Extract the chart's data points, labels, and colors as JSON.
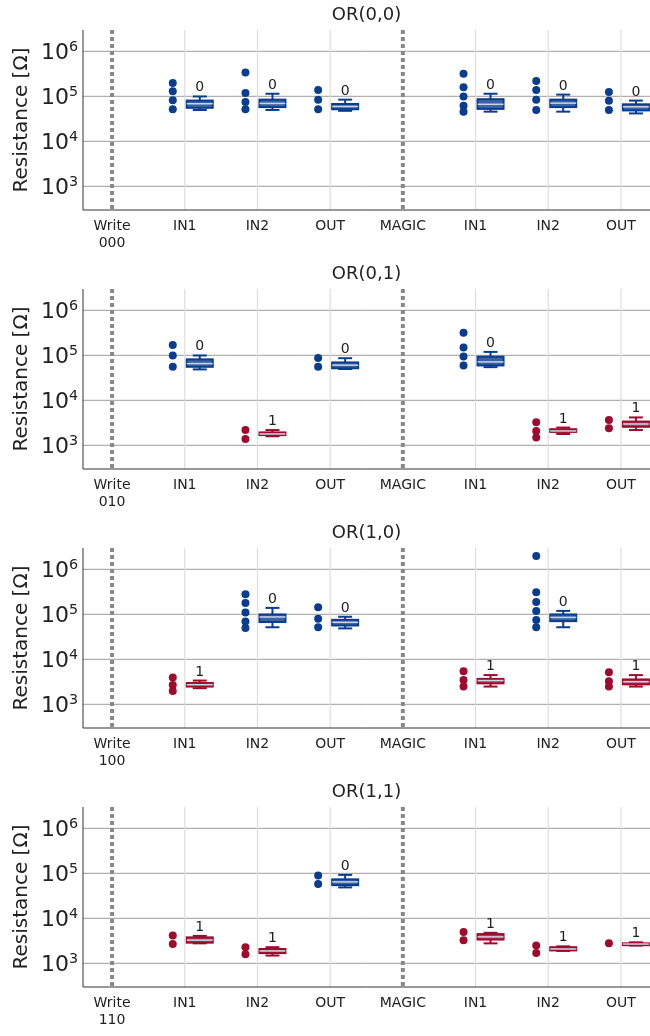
{
  "chart_data": [
    {
      "type": "box",
      "title": "OR(0,0)",
      "ylabel": "Resistance [Ω]",
      "log": "y",
      "grid": true,
      "ylim": [
        300,
        3000000
      ],
      "yticks": [
        {
          "value": 1000,
          "label": "10$^{3}$"
        },
        {
          "value": 10000,
          "label": "10$^{4}$"
        },
        {
          "value": 100000,
          "label": "10$^{5}$"
        },
        {
          "value": 1000000,
          "label": "10$^{6}$"
        }
      ],
      "categories": [
        "Write 000",
        "IN1",
        "IN2",
        "OUT"
      ],
      "ref_lines": [
        {
          "axis": "x",
          "value": "Write 000",
          "color": "#888888",
          "line_style": "dotted"
        }
      ],
      "series": [
        {
          "type": "box",
          "color": "#0b3d8c",
          "boxes": [
            null,
            {
              "low": 50000,
              "q1": 56000,
              "median": 69000,
              "q3": 81000,
              "high": 100000
            },
            {
              "low": 50000,
              "q1": 58000,
              "median": 70000,
              "q3": 85000,
              "high": 115000
            },
            {
              "low": 48000,
              "q1": 52000,
              "median": 60000,
              "q3": 68000,
              "high": 85000
            }
          ],
          "value_labels": [
            null,
            "0",
            "0",
            "0"
          ]
        },
        {
          "type": "scatter",
          "color": "#0b3d8c",
          "x": [
            "IN1",
            "IN1",
            "IN1",
            "IN1",
            "IN2",
            "IN2",
            "IN2",
            "IN2",
            "OUT",
            "OUT",
            "OUT"
          ],
          "values": [
            200000,
            130000,
            82000,
            52000,
            340000,
            120000,
            75000,
            52000,
            140000,
            85000,
            52000
          ]
        }
      ]
    },
    {
      "type": "box",
      "log": "y",
      "grid": true,
      "tick_labels": "x",
      "ylim": [
        300,
        3000000
      ],
      "yticks": [
        1000,
        10000,
        100000,
        1000000
      ],
      "categories": [
        "MAGIC",
        "IN1",
        "IN2",
        "OUT"
      ],
      "ref_lines": [
        {
          "axis": "x",
          "value": "MAGIC",
          "color": "#888888",
          "line_style": "dotted"
        }
      ],
      "series": [
        {
          "type": "box",
          "color": "#0b3d8c",
          "boxes": [
            null,
            {
              "low": 46000,
              "q1": 53000,
              "median": 67000,
              "q3": 87000,
              "high": 115000
            },
            {
              "low": 46000,
              "q1": 58000,
              "median": 71000,
              "q3": 85000,
              "high": 110000
            },
            {
              "low": 42000,
              "q1": 49000,
              "median": 59000,
              "q3": 67000,
              "high": 81000
            }
          ],
          "value_labels": [
            null,
            "0",
            "0",
            "0"
          ]
        },
        {
          "type": "scatter",
          "color": "#0b3d8c",
          "x": [
            "IN1",
            "IN1",
            "IN1",
            "IN1",
            "IN1",
            "IN2",
            "IN2",
            "IN2",
            "IN2",
            "OUT",
            "OUT",
            "OUT"
          ],
          "values": [
            320000,
            160000,
            100000,
            62000,
            46000,
            220000,
            140000,
            85000,
            50000,
            126000,
            80000,
            50000
          ]
        }
      ]
    },
    {
      "type": "box",
      "title": "OR(0,1)",
      "ylabel": "Resistance [Ω]",
      "log": "y",
      "grid": true,
      "ylim": [
        300,
        3000000
      ],
      "yticks": [
        {
          "value": 1000,
          "label": "10$^{3}$"
        },
        {
          "value": 10000,
          "label": "10$^{4}$"
        },
        {
          "value": 100000,
          "label": "10$^{5}$"
        },
        {
          "value": 1000000,
          "label": "10$^{6}$"
        }
      ],
      "categories": [
        "Write 010",
        "IN1",
        "IN2",
        "OUT"
      ],
      "ref_lines": [
        {
          "axis": "x",
          "value": "Write 010",
          "color": "#888888",
          "line_style": "dotted"
        }
      ],
      "series": [
        {
          "type": "box",
          "color": "#0b3d8c",
          "boxes": [
            null,
            {
              "low": 49000,
              "q1": 56000,
              "median": 66000,
              "q3": 82000,
              "high": 100000
            },
            null,
            {
              "low": 50000,
              "q1": 52000,
              "median": 61000,
              "q3": 70000,
              "high": 87000
            }
          ],
          "value_labels": [
            null,
            "0",
            null,
            "0"
          ]
        },
        {
          "type": "box",
          "color": "#9b0d2e",
          "boxes": [
            null,
            null,
            {
              "low": 1600,
              "q1": 1700,
              "median": 1800,
              "q3": 1950,
              "high": 2200
            },
            null
          ],
          "value_labels": [
            null,
            null,
            "1",
            null
          ]
        },
        {
          "type": "scatter",
          "color": "#0b3d8c",
          "x": [
            "IN1",
            "IN1",
            "IN1",
            "OUT",
            "OUT"
          ],
          "values": [
            170000,
            100000,
            56000,
            88000,
            56000
          ]
        },
        {
          "type": "scatter",
          "color": "#9b0d2e",
          "x": [
            "IN2",
            "IN2"
          ],
          "values": [
            2200,
            1400
          ]
        }
      ]
    },
    {
      "type": "box",
      "log": "y",
      "grid": true,
      "tick_labels": "x",
      "ylim": [
        300,
        3000000
      ],
      "yticks": [
        1000,
        10000,
        100000,
        1000000
      ],
      "categories": [
        "MAGIC",
        "IN1",
        "IN2",
        "OUT"
      ],
      "ref_lines": [
        {
          "axis": "x",
          "value": "MAGIC",
          "color": "#888888",
          "line_style": "dotted"
        }
      ],
      "series": [
        {
          "type": "box",
          "color": "#0b3d8c",
          "boxes": [
            null,
            {
              "low": 55000,
              "q1": 60000,
              "median": 72000,
              "q3": 94000,
              "high": 120000
            },
            null,
            null
          ],
          "value_labels": [
            null,
            "0",
            null,
            null
          ]
        },
        {
          "type": "box",
          "color": "#9b0d2e",
          "boxes": [
            null,
            null,
            {
              "low": 1800,
              "q1": 2000,
              "median": 2100,
              "q3": 2300,
              "high": 2500
            },
            {
              "low": 2200,
              "q1": 2600,
              "median": 3000,
              "q3": 3400,
              "high": 4200
            }
          ],
          "value_labels": [
            null,
            null,
            "1",
            "1"
          ]
        },
        {
          "type": "scatter",
          "color": "#0b3d8c",
          "x": [
            "IN1",
            "IN1",
            "IN1",
            "IN1"
          ],
          "values": [
            320000,
            150000,
            95000,
            60000
          ]
        },
        {
          "type": "scatter",
          "color": "#9b0d2e",
          "x": [
            "IN2",
            "IN2",
            "IN2",
            "OUT",
            "OUT"
          ],
          "values": [
            3300,
            2100,
            1500,
            3700,
            2400
          ]
        }
      ]
    },
    {
      "type": "box",
      "title": "OR(1,0)",
      "ylabel": "Resistance [Ω]",
      "log": "y",
      "grid": true,
      "ylim": [
        300,
        3000000
      ],
      "yticks": [
        {
          "value": 1000,
          "label": "10$^{3}$"
        },
        {
          "value": 10000,
          "label": "10$^{4}$"
        },
        {
          "value": 100000,
          "label": "10$^{5}$"
        },
        {
          "value": 1000000,
          "label": "10$^{6}$"
        }
      ],
      "categories": [
        "Write 100",
        "IN1",
        "IN2",
        "OUT"
      ],
      "ref_lines": [
        {
          "axis": "x",
          "value": "Write 100",
          "color": "#888888",
          "line_style": "dotted"
        }
      ],
      "series": [
        {
          "type": "box",
          "color": "#0b3d8c",
          "boxes": [
            null,
            null,
            {
              "low": 52000,
              "q1": 68000,
              "median": 88000,
              "q3": 100000,
              "high": 140000
            },
            {
              "low": 49000,
              "q1": 57000,
              "median": 67000,
              "q3": 76000,
              "high": 89000
            }
          ],
          "value_labels": [
            null,
            null,
            "0",
            "0"
          ]
        },
        {
          "type": "box",
          "color": "#9b0d2e",
          "boxes": [
            null,
            {
              "low": 2300,
              "q1": 2500,
              "median": 2750,
              "q3": 3000,
              "high": 3400
            },
            null,
            null
          ],
          "value_labels": [
            null,
            "1",
            null,
            null
          ]
        },
        {
          "type": "scatter",
          "color": "#0b3d8c",
          "x": [
            "IN2",
            "IN2",
            "IN2",
            "IN2",
            "IN2",
            "OUT",
            "OUT",
            "OUT"
          ],
          "values": [
            280000,
            180000,
            110000,
            70000,
            50000,
            145000,
            80000,
            52000
          ]
        },
        {
          "type": "scatter",
          "color": "#9b0d2e",
          "x": [
            "IN1",
            "IN1",
            "IN1"
          ],
          "values": [
            4000,
            2700,
            2000
          ]
        }
      ]
    },
    {
      "type": "box",
      "log": "y",
      "grid": true,
      "tick_labels": "x",
      "ylim": [
        300,
        3000000
      ],
      "yticks": [
        1000,
        10000,
        100000,
        1000000
      ],
      "categories": [
        "MAGIC",
        "IN1",
        "IN2",
        "OUT"
      ],
      "ref_lines": [
        {
          "axis": "x",
          "value": "MAGIC",
          "color": "#888888",
          "line_style": "dotted"
        }
      ],
      "series": [
        {
          "type": "box",
          "color": "#0b3d8c",
          "boxes": [
            null,
            null,
            {
              "low": 52000,
              "q1": 71000,
              "median": 86000,
              "q3": 100000,
              "high": 120000
            },
            null
          ],
          "value_labels": [
            null,
            null,
            "0",
            null
          ]
        },
        {
          "type": "box",
          "color": "#9b0d2e",
          "boxes": [
            null,
            {
              "low": 2500,
              "q1": 2950,
              "median": 3400,
              "q3": 3700,
              "high": 4500
            },
            null,
            {
              "low": 2500,
              "q1": 2800,
              "median": 3200,
              "q3": 3600,
              "high": 4500
            }
          ],
          "value_labels": [
            null,
            "1",
            null,
            "1"
          ]
        },
        {
          "type": "scatter",
          "color": "#0b3d8c",
          "x": [
            "IN2",
            "IN2",
            "IN2",
            "IN2",
            "IN2",
            "IN2"
          ],
          "values": [
            2000000,
            310000,
            190000,
            120000,
            75000,
            52000
          ]
        },
        {
          "type": "scatter",
          "color": "#9b0d2e",
          "x": [
            "IN1",
            "IN1",
            "IN1",
            "OUT",
            "OUT",
            "OUT"
          ],
          "values": [
            5500,
            3500,
            2500,
            5200,
            3300,
            2500
          ]
        }
      ]
    },
    {
      "type": "box",
      "title": "OR(1,1)",
      "ylabel": "Resistance [Ω]",
      "log": "y",
      "grid": true,
      "ylim": [
        300,
        3000000
      ],
      "yticks": [
        {
          "value": 1000,
          "label": "10$^{3}$"
        },
        {
          "value": 10000,
          "label": "10$^{4}$"
        },
        {
          "value": 100000,
          "label": "10$^{5}$"
        },
        {
          "value": 1000000,
          "label": "10$^{6}$"
        }
      ],
      "categories": [
        "Write 110",
        "IN1",
        "IN2",
        "OUT"
      ],
      "ref_lines": [
        {
          "axis": "x",
          "value": "Write 110",
          "color": "#888888",
          "line_style": "dotted"
        }
      ],
      "series": [
        {
          "type": "box",
          "color": "#0b3d8c",
          "boxes": [
            null,
            null,
            null,
            {
              "low": 49000,
              "q1": 55000,
              "median": 65000,
              "q3": 74000,
              "high": 93000
            }
          ],
          "value_labels": [
            null,
            null,
            null,
            "0"
          ]
        },
        {
          "type": "box",
          "color": "#9b0d2e",
          "boxes": [
            null,
            {
              "low": 2800,
              "q1": 2900,
              "median": 3300,
              "q3": 3800,
              "high": 4100
            },
            {
              "low": 1500,
              "q1": 1700,
              "median": 1900,
              "q3": 2100,
              "high": 2300
            },
            null
          ],
          "value_labels": [
            null,
            "1",
            "1",
            null
          ]
        },
        {
          "type": "scatter",
          "color": "#0b3d8c",
          "x": [
            "OUT",
            "OUT"
          ],
          "values": [
            90000,
            58000
          ]
        },
        {
          "type": "scatter",
          "color": "#9b0d2e",
          "x": [
            "IN1",
            "IN1",
            "IN2",
            "IN2"
          ],
          "values": [
            4200,
            2700,
            2300,
            1600
          ]
        }
      ]
    },
    {
      "type": "box",
      "log": "y",
      "grid": true,
      "tick_labels": "x",
      "ylim": [
        300,
        3000000
      ],
      "yticks": [
        1000,
        10000,
        100000,
        1000000
      ],
      "categories": [
        "MAGIC",
        "IN1",
        "IN2",
        "OUT"
      ],
      "ref_lines": [
        {
          "axis": "x",
          "value": "MAGIC",
          "color": "#888888",
          "line_style": "dotted"
        }
      ],
      "series": [
        {
          "type": "box",
          "color": "#9b0d2e",
          "boxes": [
            null,
            {
              "low": 2800,
              "q1": 3400,
              "median": 3900,
              "q3": 4500,
              "high": 4800
            },
            {
              "low": 1900,
              "q1": 1950,
              "median": 2100,
              "q3": 2300,
              "high": 2400
            },
            {
              "low": 2500,
              "q1": 2550,
              "median": 2700,
              "q3": 2800,
              "high": 2950
            }
          ],
          "value_labels": [
            null,
            "1",
            "1",
            "1"
          ]
        },
        {
          "type": "scatter",
          "color": "#9b0d2e",
          "x": [
            "IN1",
            "IN1",
            "IN2",
            "IN2",
            "OUT"
          ],
          "values": [
            5000,
            3300,
            2500,
            1700,
            2800
          ]
        }
      ]
    }
  ]
}
